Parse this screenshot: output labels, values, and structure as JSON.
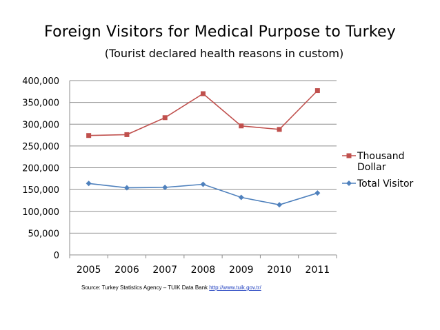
{
  "chart_data": {
    "type": "line",
    "title": "Foreign Visitors for Medical Purpose to Turkey",
    "subtitle": "(Tourist declared health reasons in custom)",
    "categories": [
      "2005",
      "2006",
      "2007",
      "2008",
      "2009",
      "2010",
      "2011"
    ],
    "ylim": [
      0,
      400000
    ],
    "yticks": [
      0,
      50000,
      100000,
      150000,
      200000,
      250000,
      300000,
      350000,
      400000
    ],
    "ytick_labels": [
      "0",
      "50,000",
      "100,000",
      "150,000",
      "200,000",
      "250,000",
      "300,000",
      "350,000",
      "400,000"
    ],
    "grid": true,
    "legend_position": "right",
    "series": [
      {
        "name_line1": "Thousand",
        "name_line2": "Dollar",
        "color": "#c0504d",
        "marker": "square",
        "values": [
          274000,
          276000,
          315000,
          370000,
          296000,
          288000,
          377000
        ]
      },
      {
        "name_line1": "Total Visitor",
        "name_line2": "",
        "color": "#4f81bd",
        "marker": "diamond",
        "values": [
          164000,
          154000,
          155000,
          162000,
          132000,
          115000,
          142000
        ]
      }
    ]
  },
  "source": {
    "text": "Source: Turkey Statistics Agency – TUIK Data Bank",
    "link": "http://www.tuik.gov.tr/"
  }
}
